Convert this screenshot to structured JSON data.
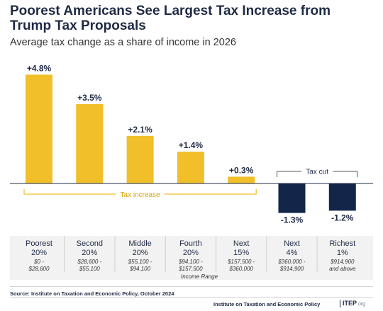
{
  "title": "Poorest Americans See Largest Tax Increase from Trump Tax Proposals",
  "subtitle": "Average tax change as a share of income in 2026",
  "chart_data": {
    "type": "bar",
    "categories": [
      "Poorest 20%",
      "Second 20%",
      "Middle 20%",
      "Fourth 20%",
      "Next 15%",
      "Next 4%",
      "Richest 1%"
    ],
    "category_lines": [
      [
        "Poorest",
        "20%"
      ],
      [
        "Second",
        "20%"
      ],
      [
        "Middle",
        "20%"
      ],
      [
        "Fourth",
        "20%"
      ],
      [
        "Next",
        "15%"
      ],
      [
        "Next",
        "4%"
      ],
      [
        "Richest",
        "1%"
      ]
    ],
    "ranges": [
      [
        "$0 -",
        "$28,600"
      ],
      [
        "$28,600 -",
        "$55,100"
      ],
      [
        "$55,100 -",
        "$94,100"
      ],
      [
        "$94,100 -",
        "$157,500"
      ],
      [
        "$157,500 -",
        "$360,000"
      ],
      [
        "$360,000 -",
        "$914,900"
      ],
      [
        "$914,900",
        "and above"
      ]
    ],
    "values": [
      4.8,
      3.5,
      2.1,
      1.4,
      0.3,
      -1.3,
      -1.2
    ],
    "data_labels": [
      "+4.8%",
      "+3.5%",
      "+2.1%",
      "+1.4%",
      "+0.3%",
      "-1.3%",
      "-1.2%"
    ],
    "xlabel": "Income Range",
    "ylabel": "",
    "ylim": [
      -1.4,
      5.0
    ],
    "grid": false,
    "colors": {
      "increase": "#f0bf2a",
      "cut": "#14254a",
      "bracket_increase": "#f0bf2a",
      "bracket_cut": "#555555",
      "label_band": "#f2f2f2"
    },
    "annotations": {
      "tax_increase": "Tax increase",
      "tax_cut": "Tax cut"
    }
  },
  "source": "Source: Institute on Taxation and Economic Policy, October 2024",
  "footer": {
    "org": "Institute on Taxation and Economic Policy",
    "logo": "ITEP",
    "logo_suffix": ".org"
  }
}
